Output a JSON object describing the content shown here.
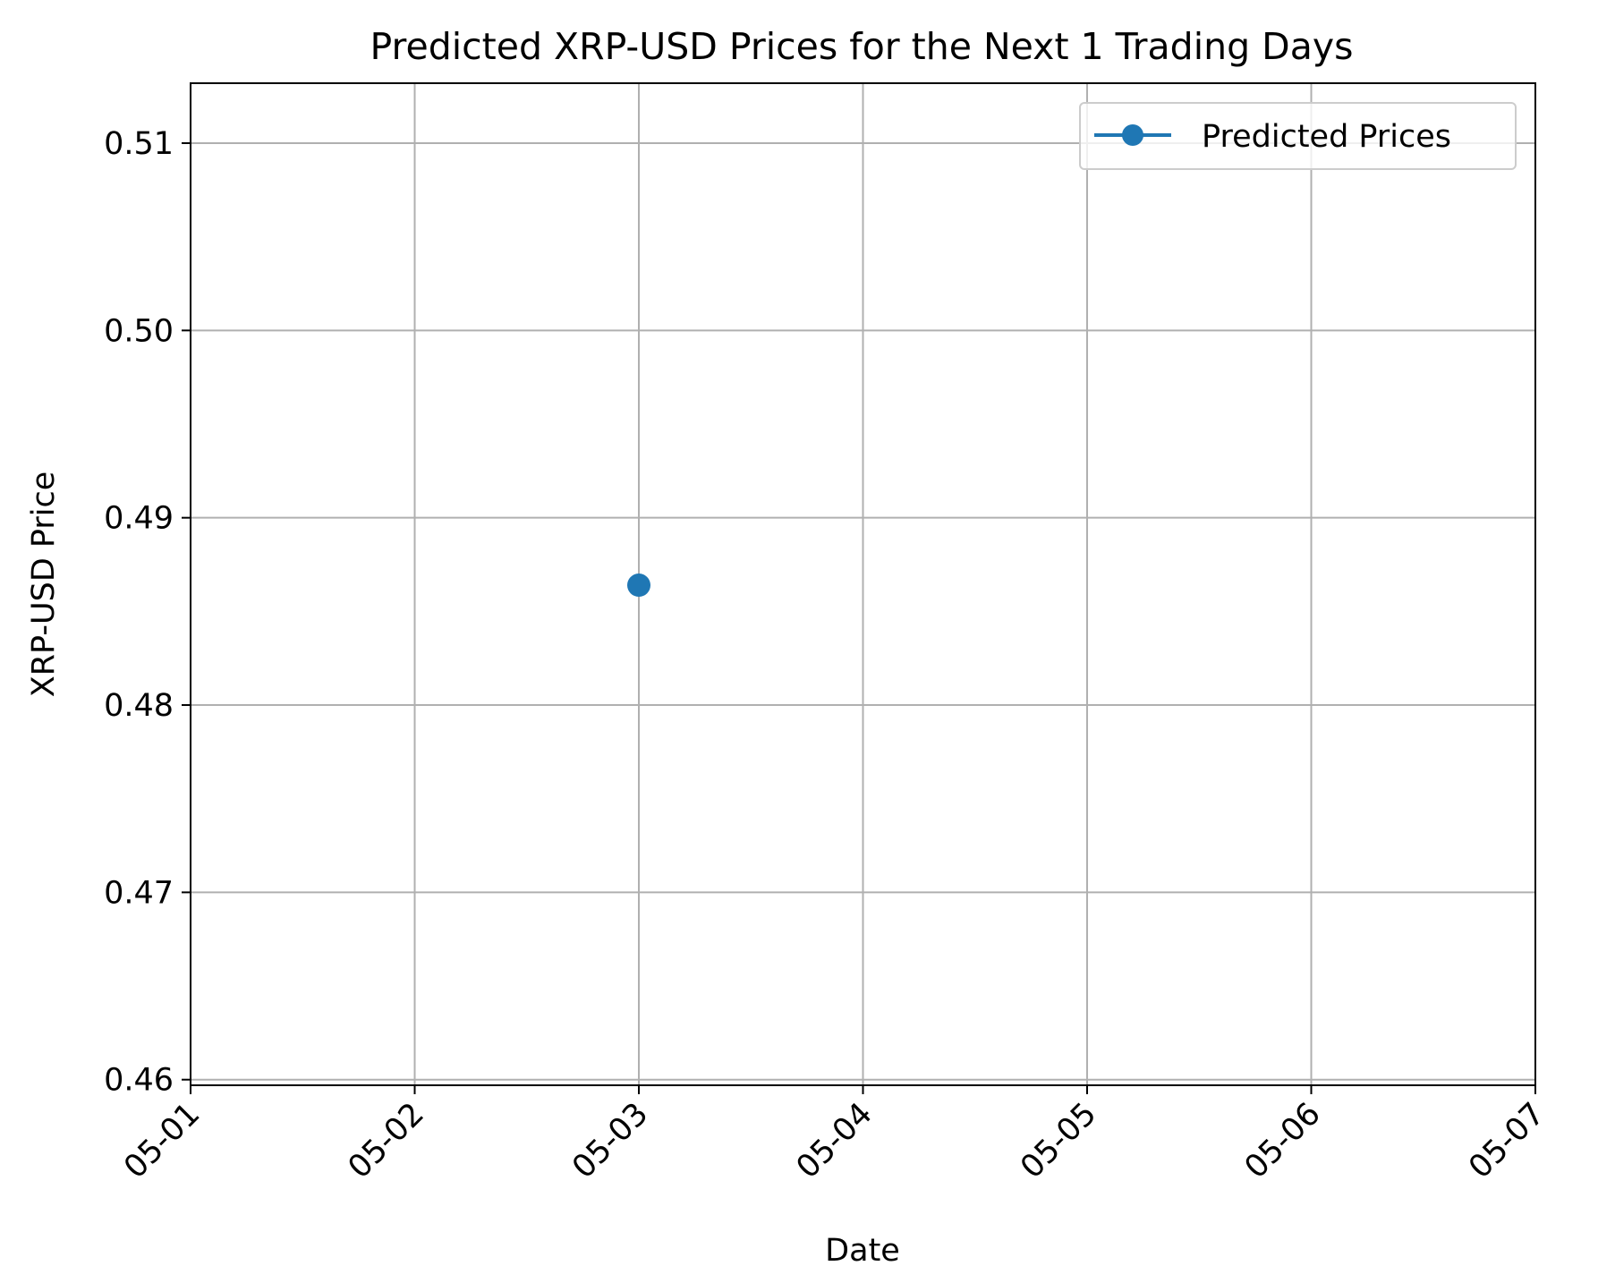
{
  "chart_data": {
    "type": "line",
    "title": "Predicted XRP-USD Prices for the Next 1 Trading Days",
    "xlabel": "Date",
    "ylabel": "XRP-USD Price",
    "x_ticks": [
      "05-01",
      "05-02",
      "05-03",
      "05-04",
      "05-05",
      "05-06",
      "05-07"
    ],
    "y_ticks": [
      "0.46",
      "0.47",
      "0.48",
      "0.49",
      "0.50",
      "0.51"
    ],
    "ylim": [
      0.4597,
      0.5132
    ],
    "xlim": [
      "05-01",
      "05-07"
    ],
    "grid": true,
    "legend_position": "top-right",
    "series": [
      {
        "name": "Predicted Prices",
        "color": "#1f77b4",
        "marker": "circle",
        "x": [
          "05-03"
        ],
        "values": [
          0.4864
        ]
      }
    ]
  }
}
